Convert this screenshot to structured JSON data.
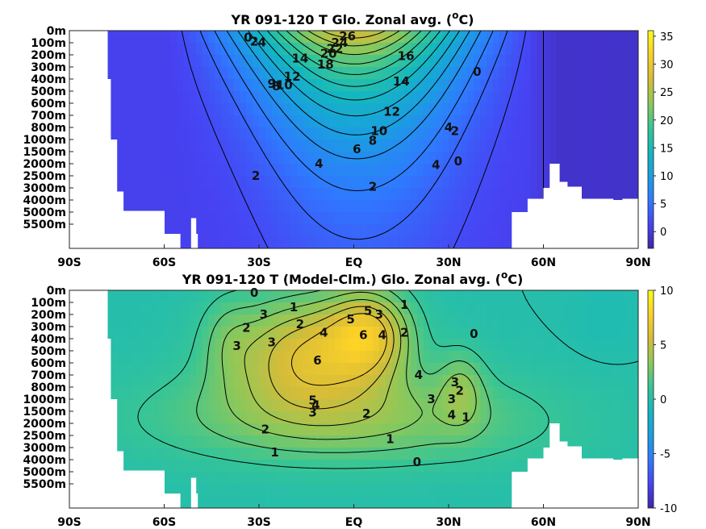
{
  "chart_data": [
    {
      "type": "heatmap",
      "title": "YR 091-120 T Glo. Zonal avg. (°C)",
      "title_main": "YR 091-120 T Glo. Zonal avg. (",
      "title_sup": "o",
      "title_end": "C)",
      "x_ticks": [
        "90S",
        "60S",
        "30S",
        "EQ",
        "30N",
        "60N",
        "90N"
      ],
      "x_values": [
        -90,
        -60,
        -30,
        0,
        30,
        60,
        90
      ],
      "y_ticks": [
        "0m",
        "100m",
        "200m",
        "300m",
        "400m",
        "500m",
        "600m",
        "700m",
        "800m",
        "1000m",
        "1500m",
        "2000m",
        "2500m",
        "3000m",
        "4000m",
        "5000m",
        "5500m"
      ],
      "colorbar": {
        "min": -3,
        "max": 36,
        "ticks": [
          "35",
          "30",
          "25",
          "20",
          "15",
          "10",
          "5",
          "0"
        ],
        "tick_values": [
          35,
          30,
          25,
          20,
          15,
          10,
          5,
          0
        ]
      },
      "contour_labels": [
        {
          "text": "0",
          "x": -33.5,
          "d": 0.55
        },
        {
          "text": "2",
          "x": -31.5,
          "d": 0.9
        },
        {
          "text": "4",
          "x": -29,
          "d": 0.95
        },
        {
          "text": "9",
          "x": -26,
          "d": 4.4
        },
        {
          "text": "8",
          "x": -24.5,
          "d": 4.6
        },
        {
          "text": "10",
          "x": -22,
          "d": 4.5
        },
        {
          "text": "12",
          "x": -19.5,
          "d": 3.8
        },
        {
          "text": "14",
          "x": -17,
          "d": 2.3
        },
        {
          "text": "18",
          "x": -9,
          "d": 2.8
        },
        {
          "text": "20",
          "x": -8,
          "d": 1.9
        },
        {
          "text": "22",
          "x": -6,
          "d": 1.5
        },
        {
          "text": "24",
          "x": -4.5,
          "d": 1.0
        },
        {
          "text": "26",
          "x": -2,
          "d": 0.45
        },
        {
          "text": "16",
          "x": 16.5,
          "d": 2.1
        },
        {
          "text": "14",
          "x": 15,
          "d": 4.2
        },
        {
          "text": "12",
          "x": 12,
          "d": 6.7
        },
        {
          "text": "10",
          "x": 8,
          "d": 8.3
        },
        {
          "text": "8",
          "x": 6,
          "d": 9.1
        },
        {
          "text": "6",
          "x": 1,
          "d": 9.8
        },
        {
          "text": "4",
          "x": -11,
          "d": 11.0
        },
        {
          "text": "2",
          "x": -31,
          "d": 12.0
        },
        {
          "text": "2",
          "x": 6,
          "d": 12.9
        },
        {
          "text": "4",
          "x": 26,
          "d": 11.1
        },
        {
          "text": "0",
          "x": 33,
          "d": 10.8
        },
        {
          "text": "4",
          "x": 30,
          "d": 8.0
        },
        {
          "text": "2",
          "x": 32,
          "d": 8.3
        },
        {
          "text": "0",
          "x": 39,
          "d": 3.4
        }
      ]
    },
    {
      "type": "heatmap",
      "title": "YR 091-120 T (Model-Clm.) Glo. Zonal avg. (°C)",
      "title_main": "YR 091-120 T (Model-Clm.) Glo. Zonal avg. (",
      "title_sup": "o",
      "title_end": "C)",
      "x_ticks": [
        "90S",
        "60S",
        "30S",
        "EQ",
        "30N",
        "60N",
        "90N"
      ],
      "x_values": [
        -90,
        -60,
        -30,
        0,
        30,
        60,
        90
      ],
      "y_ticks": [
        "0m",
        "100m",
        "200m",
        "300m",
        "400m",
        "500m",
        "600m",
        "700m",
        "800m",
        "1000m",
        "1500m",
        "2000m",
        "2500m",
        "3000m",
        "4000m",
        "5000m",
        "5500m"
      ],
      "colorbar": {
        "min": -10,
        "max": 10,
        "ticks": [
          "10",
          "5",
          "0",
          "-5",
          "-10"
        ],
        "tick_values": [
          10,
          5,
          0,
          -5,
          -10
        ]
      },
      "contour_labels": [
        {
          "text": "0",
          "x": -31.5,
          "d": 0.2
        },
        {
          "text": "3",
          "x": -28.5,
          "d": 2.0
        },
        {
          "text": "2",
          "x": -34,
          "d": 3.1
        },
        {
          "text": "3",
          "x": -37,
          "d": 4.6
        },
        {
          "text": "3",
          "x": -26,
          "d": 4.3
        },
        {
          "text": "1",
          "x": -19,
          "d": 1.4
        },
        {
          "text": "2",
          "x": -17,
          "d": 2.8
        },
        {
          "text": "4",
          "x": -9.5,
          "d": 3.5
        },
        {
          "text": "5",
          "x": -1,
          "d": 2.4
        },
        {
          "text": "6",
          "x": -11.5,
          "d": 5.8
        },
        {
          "text": "6",
          "x": 3,
          "d": 3.7
        },
        {
          "text": "5",
          "x": 4.5,
          "d": 1.7
        },
        {
          "text": "3",
          "x": 8,
          "d": 2.0
        },
        {
          "text": "4",
          "x": 9,
          "d": 3.7
        },
        {
          "text": "1",
          "x": 16,
          "d": 1.2
        },
        {
          "text": "2",
          "x": 16,
          "d": 3.5
        },
        {
          "text": "0",
          "x": 38,
          "d": 3.6
        },
        {
          "text": "4",
          "x": 20.5,
          "d": 7.0
        },
        {
          "text": "3",
          "x": 24.5,
          "d": 9.0
        },
        {
          "text": "3",
          "x": 31,
          "d": 9.0
        },
        {
          "text": "3",
          "x": 32,
          "d": 7.6
        },
        {
          "text": "2",
          "x": 33.5,
          "d": 8.3
        },
        {
          "text": "1",
          "x": 35.5,
          "d": 10.5
        },
        {
          "text": "4",
          "x": 31,
          "d": 10.3
        },
        {
          "text": "5",
          "x": -13,
          "d": 9.1
        },
        {
          "text": "4",
          "x": -12,
          "d": 9.5
        },
        {
          "text": "3",
          "x": -13,
          "d": 10.1
        },
        {
          "text": "2",
          "x": 4,
          "d": 10.2
        },
        {
          "text": "2",
          "x": -28,
          "d": 11.5
        },
        {
          "text": "1",
          "x": 11.5,
          "d": 12.3
        },
        {
          "text": "1",
          "x": -25,
          "d": 13.4
        },
        {
          "text": "0",
          "x": 20,
          "d": 14.2
        }
      ]
    }
  ],
  "colors": {
    "colormap": [
      "#3e26a8",
      "#4743f3",
      "#2f7aff",
      "#1a9fe0",
      "#14b7c0",
      "#38c595",
      "#8cc85a",
      "#d5bc39",
      "#fbd028",
      "#f9fb15"
    ],
    "land": "#ffffff",
    "contour": "#000000"
  }
}
